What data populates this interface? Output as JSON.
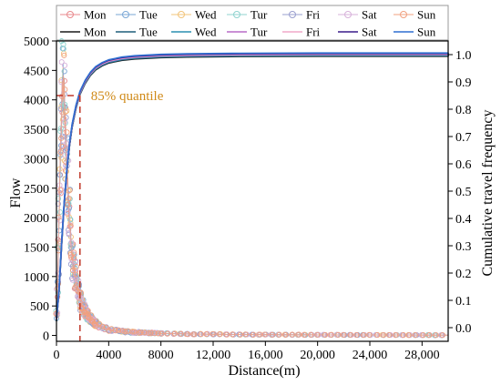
{
  "chart_data": {
    "type": "line",
    "x_label": "Distance(m)",
    "y_left_label": "Flow",
    "y_right_label": "Cumulative travel frequency",
    "x_range": [
      0,
      30000
    ],
    "y_left_range": [
      -100,
      5000
    ],
    "y_right_range": [
      -0.05,
      1.05
    ],
    "x_ticks": [
      {
        "value": 0,
        "label": "0"
      },
      {
        "value": 4000,
        "label": "4000"
      },
      {
        "value": 8000,
        "label": "8000"
      },
      {
        "value": 12000,
        "label": "12,000"
      },
      {
        "value": 16000,
        "label": "16,000"
      },
      {
        "value": 20000,
        "label": "20,000"
      },
      {
        "value": 24000,
        "label": "24,000"
      },
      {
        "value": 28000,
        "label": "28,000"
      }
    ],
    "y_left_ticks": [
      {
        "value": 0,
        "label": "0"
      },
      {
        "value": 500,
        "label": "500"
      },
      {
        "value": 1000,
        "label": "1000"
      },
      {
        "value": 1500,
        "label": "1500"
      },
      {
        "value": 2000,
        "label": "2000"
      },
      {
        "value": 2500,
        "label": "2500"
      },
      {
        "value": 3000,
        "label": "3000"
      },
      {
        "value": 3500,
        "label": "3500"
      },
      {
        "value": 4000,
        "label": "4000"
      },
      {
        "value": 4500,
        "label": "4500"
      },
      {
        "value": 5000,
        "label": "5000"
      }
    ],
    "y_right_ticks": [
      {
        "value": 0.0,
        "label": "0.0"
      },
      {
        "value": 0.1,
        "label": "0.1"
      },
      {
        "value": 0.2,
        "label": "0.2"
      },
      {
        "value": 0.3,
        "label": "0.3"
      },
      {
        "value": 0.4,
        "label": "0.4"
      },
      {
        "value": 0.5,
        "label": "0.5"
      },
      {
        "value": 0.6,
        "label": "0.6"
      },
      {
        "value": 0.7,
        "label": "0.7"
      },
      {
        "value": 0.8,
        "label": "0.8"
      },
      {
        "value": 0.9,
        "label": "0.9"
      },
      {
        "value": 1.0,
        "label": "1.0"
      }
    ],
    "grid": false,
    "legend": {
      "position": "top",
      "markers": [
        {
          "name": "Mon",
          "color": "#e8898d"
        },
        {
          "name": "Tue",
          "color": "#7aa7d6"
        },
        {
          "name": "Wed",
          "color": "#f2c47a"
        },
        {
          "name": "Tur",
          "color": "#8fd3cf"
        },
        {
          "name": "Fri",
          "color": "#9a9fcf"
        },
        {
          "name": "Sat",
          "color": "#d7b1da"
        },
        {
          "name": "Sun",
          "color": "#f1a07f"
        }
      ],
      "lines": [
        {
          "name": "Mon",
          "color": "#1a1a1a"
        },
        {
          "name": "Tue",
          "color": "#1f5f7a"
        },
        {
          "name": "Wed",
          "color": "#2a8fb0"
        },
        {
          "name": "Tur",
          "color": "#b86bc7"
        },
        {
          "name": "Fri",
          "color": "#f0a8c8"
        },
        {
          "name": "Sat",
          "color": "#3a1c8a"
        },
        {
          "name": "Sun",
          "color": "#2f6fd1"
        }
      ]
    },
    "flow_series_profile": {
      "axis": "left",
      "x": [
        0,
        100,
        200,
        300,
        400,
        500,
        600,
        700,
        800,
        1000,
        1200,
        1500,
        1800,
        2200,
        2600,
        3000,
        3500,
        4000,
        5000,
        6000,
        8000,
        10000,
        14000,
        20000,
        30000
      ],
      "y": [
        200,
        900,
        2000,
        3000,
        3800,
        4300,
        4000,
        3400,
        2800,
        1900,
        1300,
        900,
        600,
        400,
        280,
        200,
        140,
        100,
        70,
        50,
        35,
        25,
        15,
        10,
        5
      ]
    },
    "cumulative_series": {
      "axis": "right",
      "x": [
        0,
        200,
        400,
        600,
        800,
        1000,
        1200,
        1500,
        1800,
        2200,
        2600,
        3000,
        3500,
        4000,
        5000,
        6000,
        8000,
        10000,
        14000,
        20000,
        30000
      ],
      "y": [
        0.03,
        0.14,
        0.31,
        0.46,
        0.58,
        0.67,
        0.74,
        0.81,
        0.86,
        0.9,
        0.93,
        0.95,
        0.965,
        0.975,
        0.985,
        0.99,
        0.995,
        0.997,
        0.999,
        1.0,
        1.0
      ]
    },
    "annotation": {
      "text": "85% quantile",
      "x": 1800,
      "y": 0.85,
      "axis": "right",
      "color": "#c0392b"
    }
  }
}
